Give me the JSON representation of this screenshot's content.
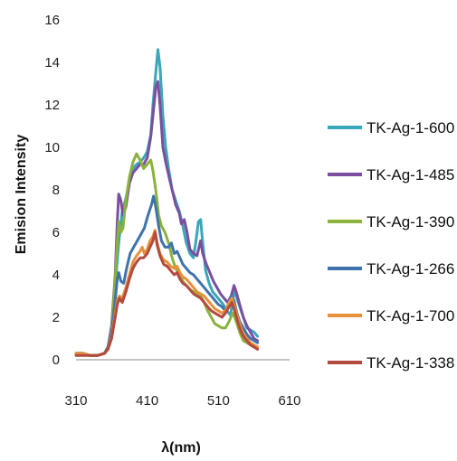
{
  "chart_data": {
    "type": "line",
    "title": "",
    "xlabel": "λ(nm)",
    "ylabel": "Emision Intensity",
    "xlim": [
      310,
      610
    ],
    "ylim": [
      0,
      16
    ],
    "x_ticks": [
      310,
      410,
      510,
      610
    ],
    "y_ticks": [
      0,
      2,
      4,
      6,
      8,
      10,
      12,
      14,
      16
    ],
    "grid": false,
    "legend_position": "right",
    "series": [
      {
        "name": "TK-Ag-1-600",
        "color": "#3aa6b9",
        "points": [
          [
            310,
            0.3
          ],
          [
            320,
            0.3
          ],
          [
            330,
            0.2
          ],
          [
            340,
            0.2
          ],
          [
            350,
            0.3
          ],
          [
            355,
            0.6
          ],
          [
            360,
            1.5
          ],
          [
            365,
            3.5
          ],
          [
            370,
            5.5
          ],
          [
            375,
            7.0
          ],
          [
            380,
            7.6
          ],
          [
            385,
            8.4
          ],
          [
            390,
            9.0
          ],
          [
            395,
            9.2
          ],
          [
            400,
            9.3
          ],
          [
            405,
            9.5
          ],
          [
            410,
            9.8
          ],
          [
            415,
            10.6
          ],
          [
            418,
            12.0
          ],
          [
            422,
            13.5
          ],
          [
            425,
            14.6
          ],
          [
            428,
            13.8
          ],
          [
            432,
            11.5
          ],
          [
            436,
            10.0
          ],
          [
            440,
            9.0
          ],
          [
            445,
            8.0
          ],
          [
            450,
            7.5
          ],
          [
            455,
            7.0
          ],
          [
            460,
            6.3
          ],
          [
            465,
            5.5
          ],
          [
            470,
            5.0
          ],
          [
            475,
            4.8
          ],
          [
            478,
            5.5
          ],
          [
            482,
            6.5
          ],
          [
            485,
            6.6
          ],
          [
            488,
            5.5
          ],
          [
            492,
            4.2
          ],
          [
            497,
            3.6
          ],
          [
            502,
            3.2
          ],
          [
            507,
            3.0
          ],
          [
            512,
            2.8
          ],
          [
            517,
            2.6
          ],
          [
            522,
            2.3
          ],
          [
            527,
            2.1
          ],
          [
            532,
            3.2
          ],
          [
            535,
            3.0
          ],
          [
            540,
            2.5
          ],
          [
            545,
            2.0
          ],
          [
            550,
            1.5
          ],
          [
            555,
            1.4
          ],
          [
            560,
            1.3
          ],
          [
            565,
            1.1
          ]
        ]
      },
      {
        "name": "TK-Ag-1-485",
        "color": "#7a4fa0",
        "points": [
          [
            310,
            0.3
          ],
          [
            320,
            0.3
          ],
          [
            330,
            0.2
          ],
          [
            340,
            0.2
          ],
          [
            350,
            0.3
          ],
          [
            355,
            0.6
          ],
          [
            360,
            1.6
          ],
          [
            365,
            4.0
          ],
          [
            368,
            6.5
          ],
          [
            370,
            7.8
          ],
          [
            373,
            7.5
          ],
          [
            376,
            6.8
          ],
          [
            380,
            7.2
          ],
          [
            385,
            8.3
          ],
          [
            390,
            8.8
          ],
          [
            395,
            9.0
          ],
          [
            400,
            9.2
          ],
          [
            405,
            9.2
          ],
          [
            410,
            9.5
          ],
          [
            415,
            10.5
          ],
          [
            418,
            11.5
          ],
          [
            422,
            12.8
          ],
          [
            425,
            13.1
          ],
          [
            428,
            12.0
          ],
          [
            432,
            10.0
          ],
          [
            436,
            9.3
          ],
          [
            440,
            8.7
          ],
          [
            445,
            8.0
          ],
          [
            450,
            7.3
          ],
          [
            455,
            6.9
          ],
          [
            458,
            6.4
          ],
          [
            462,
            6.6
          ],
          [
            466,
            6.0
          ],
          [
            470,
            5.2
          ],
          [
            475,
            5.0
          ],
          [
            480,
            4.9
          ],
          [
            485,
            5.6
          ],
          [
            488,
            5.0
          ],
          [
            493,
            4.5
          ],
          [
            498,
            4.1
          ],
          [
            503,
            3.7
          ],
          [
            508,
            3.4
          ],
          [
            513,
            3.1
          ],
          [
            518,
            2.9
          ],
          [
            523,
            2.7
          ],
          [
            528,
            3.0
          ],
          [
            532,
            3.5
          ],
          [
            535,
            3.2
          ],
          [
            540,
            2.6
          ],
          [
            545,
            2.0
          ],
          [
            550,
            1.6
          ],
          [
            555,
            1.3
          ],
          [
            560,
            1.0
          ],
          [
            565,
            0.9
          ]
        ]
      },
      {
        "name": "TK-Ag-1-390",
        "color": "#8bb23c",
        "points": [
          [
            310,
            0.3
          ],
          [
            320,
            0.3
          ],
          [
            330,
            0.2
          ],
          [
            340,
            0.2
          ],
          [
            350,
            0.3
          ],
          [
            355,
            0.6
          ],
          [
            360,
            1.4
          ],
          [
            365,
            3.8
          ],
          [
            368,
            5.5
          ],
          [
            370,
            6.5
          ],
          [
            373,
            6.0
          ],
          [
            376,
            6.2
          ],
          [
            380,
            7.5
          ],
          [
            385,
            8.6
          ],
          [
            390,
            9.3
          ],
          [
            395,
            9.7
          ],
          [
            400,
            9.4
          ],
          [
            405,
            9.0
          ],
          [
            410,
            9.2
          ],
          [
            415,
            9.4
          ],
          [
            418,
            8.9
          ],
          [
            422,
            8.0
          ],
          [
            426,
            6.8
          ],
          [
            430,
            6.3
          ],
          [
            435,
            6.0
          ],
          [
            440,
            5.5
          ],
          [
            445,
            4.8
          ],
          [
            450,
            4.3
          ],
          [
            455,
            4.0
          ],
          [
            460,
            3.7
          ],
          [
            465,
            3.5
          ],
          [
            470,
            3.3
          ],
          [
            475,
            3.2
          ],
          [
            480,
            3.1
          ],
          [
            485,
            3.0
          ],
          [
            490,
            2.7
          ],
          [
            495,
            2.3
          ],
          [
            500,
            2.0
          ],
          [
            505,
            1.7
          ],
          [
            510,
            1.6
          ],
          [
            515,
            1.5
          ],
          [
            520,
            1.5
          ],
          [
            525,
            1.8
          ],
          [
            530,
            2.2
          ],
          [
            533,
            2.0
          ],
          [
            537,
            1.6
          ],
          [
            541,
            1.2
          ],
          [
            545,
            0.9
          ],
          [
            550,
            0.8
          ],
          [
            555,
            0.7
          ],
          [
            560,
            0.6
          ],
          [
            565,
            0.6
          ]
        ]
      },
      {
        "name": "TK-Ag-1-266",
        "color": "#3f73ac",
        "points": [
          [
            310,
            0.3
          ],
          [
            320,
            0.3
          ],
          [
            330,
            0.2
          ],
          [
            340,
            0.2
          ],
          [
            350,
            0.3
          ],
          [
            355,
            0.6
          ],
          [
            360,
            1.3
          ],
          [
            365,
            2.8
          ],
          [
            368,
            3.8
          ],
          [
            370,
            4.1
          ],
          [
            373,
            3.7
          ],
          [
            377,
            3.6
          ],
          [
            381,
            4.3
          ],
          [
            386,
            5.0
          ],
          [
            391,
            5.3
          ],
          [
            396,
            5.6
          ],
          [
            401,
            5.9
          ],
          [
            406,
            6.2
          ],
          [
            411,
            6.8
          ],
          [
            416,
            7.3
          ],
          [
            419,
            7.7
          ],
          [
            422,
            7.2
          ],
          [
            426,
            6.3
          ],
          [
            430,
            5.6
          ],
          [
            435,
            5.3
          ],
          [
            440,
            5.3
          ],
          [
            444,
            5.5
          ],
          [
            448,
            5.0
          ],
          [
            452,
            5.1
          ],
          [
            456,
            4.8
          ],
          [
            460,
            4.5
          ],
          [
            465,
            4.3
          ],
          [
            470,
            4.1
          ],
          [
            475,
            4.0
          ],
          [
            480,
            3.8
          ],
          [
            485,
            3.6
          ],
          [
            490,
            3.4
          ],
          [
            495,
            3.2
          ],
          [
            500,
            3.0
          ],
          [
            505,
            2.8
          ],
          [
            510,
            2.6
          ],
          [
            515,
            2.5
          ],
          [
            520,
            2.3
          ],
          [
            524,
            2.6
          ],
          [
            528,
            3.0
          ],
          [
            532,
            2.8
          ],
          [
            536,
            2.2
          ],
          [
            540,
            1.8
          ],
          [
            545,
            1.5
          ],
          [
            550,
            1.2
          ],
          [
            555,
            1.0
          ],
          [
            560,
            0.9
          ],
          [
            565,
            0.8
          ]
        ]
      },
      {
        "name": "TK-Ag-1-700",
        "color": "#e7903b",
        "points": [
          [
            310,
            0.3
          ],
          [
            320,
            0.3
          ],
          [
            330,
            0.2
          ],
          [
            340,
            0.2
          ],
          [
            350,
            0.3
          ],
          [
            355,
            0.5
          ],
          [
            360,
            1.1
          ],
          [
            365,
            2.2
          ],
          [
            368,
            2.8
          ],
          [
            371,
            3.0
          ],
          [
            375,
            2.9
          ],
          [
            380,
            3.4
          ],
          [
            385,
            4.0
          ],
          [
            390,
            4.6
          ],
          [
            395,
            4.9
          ],
          [
            400,
            5.1
          ],
          [
            403,
            5.3
          ],
          [
            406,
            5.0
          ],
          [
            410,
            5.2
          ],
          [
            414,
            5.6
          ],
          [
            418,
            5.8
          ],
          [
            421,
            6.1
          ],
          [
            424,
            5.5
          ],
          [
            428,
            5.0
          ],
          [
            433,
            4.7
          ],
          [
            438,
            4.6
          ],
          [
            443,
            4.4
          ],
          [
            448,
            4.3
          ],
          [
            452,
            4.4
          ],
          [
            456,
            4.1
          ],
          [
            460,
            3.9
          ],
          [
            465,
            3.8
          ],
          [
            470,
            3.6
          ],
          [
            475,
            3.4
          ],
          [
            480,
            3.2
          ],
          [
            485,
            3.1
          ],
          [
            490,
            3.0
          ],
          [
            495,
            2.8
          ],
          [
            500,
            2.6
          ],
          [
            505,
            2.4
          ],
          [
            510,
            2.3
          ],
          [
            515,
            2.2
          ],
          [
            520,
            2.3
          ],
          [
            525,
            2.7
          ],
          [
            529,
            2.9
          ],
          [
            533,
            2.5
          ],
          [
            537,
            2.0
          ],
          [
            541,
            1.6
          ],
          [
            545,
            1.2
          ],
          [
            550,
            1.0
          ],
          [
            555,
            0.8
          ],
          [
            560,
            0.7
          ],
          [
            565,
            0.6
          ]
        ]
      },
      {
        "name": "TK-Ag-1-338",
        "color": "#b34a3e",
        "points": [
          [
            310,
            0.2
          ],
          [
            320,
            0.2
          ],
          [
            330,
            0.2
          ],
          [
            340,
            0.2
          ],
          [
            350,
            0.3
          ],
          [
            355,
            0.5
          ],
          [
            360,
            1.0
          ],
          [
            365,
            2.0
          ],
          [
            368,
            2.6
          ],
          [
            371,
            2.9
          ],
          [
            375,
            2.7
          ],
          [
            380,
            3.2
          ],
          [
            385,
            3.8
          ],
          [
            390,
            4.3
          ],
          [
            395,
            4.6
          ],
          [
            400,
            4.8
          ],
          [
            405,
            4.8
          ],
          [
            410,
            5.0
          ],
          [
            414,
            5.3
          ],
          [
            418,
            5.6
          ],
          [
            421,
            6.0
          ],
          [
            424,
            5.4
          ],
          [
            428,
            4.9
          ],
          [
            433,
            4.5
          ],
          [
            438,
            4.4
          ],
          [
            443,
            4.2
          ],
          [
            448,
            4.0
          ],
          [
            452,
            4.1
          ],
          [
            456,
            3.8
          ],
          [
            460,
            3.6
          ],
          [
            465,
            3.5
          ],
          [
            470,
            3.3
          ],
          [
            475,
            3.1
          ],
          [
            480,
            3.0
          ],
          [
            485,
            2.9
          ],
          [
            490,
            2.7
          ],
          [
            495,
            2.5
          ],
          [
            500,
            2.3
          ],
          [
            505,
            2.2
          ],
          [
            510,
            2.1
          ],
          [
            515,
            2.0
          ],
          [
            520,
            2.2
          ],
          [
            525,
            2.5
          ],
          [
            529,
            2.7
          ],
          [
            533,
            2.3
          ],
          [
            537,
            1.8
          ],
          [
            541,
            1.4
          ],
          [
            545,
            1.1
          ],
          [
            550,
            0.9
          ],
          [
            555,
            0.7
          ],
          [
            560,
            0.6
          ],
          [
            565,
            0.5
          ]
        ]
      }
    ]
  }
}
